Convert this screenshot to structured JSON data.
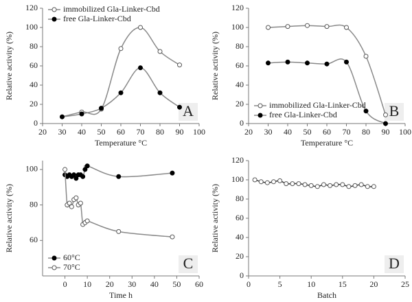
{
  "chart_data": [
    {
      "type": "line",
      "panel_label": "A",
      "x_label": "Temperature  °C",
      "y_label": "Relative activity (%)",
      "x": [
        30,
        40,
        50,
        60,
        70,
        80,
        90
      ],
      "xlim": [
        20,
        100
      ],
      "xticks": [
        20,
        30,
        40,
        50,
        60,
        70,
        80,
        90,
        100
      ],
      "ylim": [
        0,
        120
      ],
      "yticks": [
        0,
        20,
        40,
        60,
        80,
        100,
        120
      ],
      "legend": "upper left",
      "series": [
        {
          "name": "immobilized Gla-Linker-Cbd",
          "color": "#888888",
          "marker": "open",
          "values": [
            7,
            12,
            15,
            78,
            100,
            75,
            61
          ]
        },
        {
          "name": "free Gla-Linker-Cbd",
          "color": "#888888",
          "marker": "filled",
          "values": [
            7,
            10,
            16,
            32,
            58,
            32,
            17
          ]
        }
      ]
    },
    {
      "type": "line",
      "panel_label": "B",
      "x_label": "Temperature  °C",
      "y_label": "Relative activity (%)",
      "x": [
        30,
        40,
        50,
        60,
        70,
        80,
        90
      ],
      "xlim": [
        20,
        100
      ],
      "xticks": [
        20,
        30,
        40,
        50,
        60,
        70,
        80,
        90,
        100
      ],
      "ylim": [
        0,
        120
      ],
      "yticks": [
        0,
        20,
        40,
        60,
        80,
        100,
        120
      ],
      "legend": "lower left",
      "series": [
        {
          "name": "immobilized Gla-Linker-Cbd",
          "color": "#888888",
          "marker": "open",
          "values": [
            100,
            101,
            102,
            101,
            100,
            70,
            9
          ]
        },
        {
          "name": "free Gla-Linker-Cbd",
          "color": "#888888",
          "marker": "filled",
          "values": [
            63,
            64,
            63,
            62,
            64,
            13,
            0
          ]
        }
      ]
    },
    {
      "type": "line",
      "panel_label": "C",
      "x_label": "Time h",
      "y_label": "Relative activity (%)",
      "x": [
        0,
        1,
        2,
        3,
        4,
        5,
        6,
        7,
        8,
        9,
        10,
        24,
        48
      ],
      "xlim": [
        -10,
        60
      ],
      "xticks": [
        0,
        10,
        20,
        30,
        40,
        50,
        60
      ],
      "ylim": [
        40,
        105
      ],
      "yticks": [
        60,
        80,
        100
      ],
      "legend": "lower left",
      "series": [
        {
          "name": "60°C",
          "color": "#888888",
          "marker": "filled",
          "values": [
            97,
            96,
            97,
            96,
            97,
            95,
            97,
            97,
            96,
            100,
            102,
            96,
            98
          ]
        },
        {
          "name": "70°C",
          "color": "#888888",
          "marker": "open",
          "values": [
            100,
            80,
            81,
            79,
            83,
            84,
            80,
            81,
            69,
            70,
            71,
            65,
            62
          ]
        }
      ]
    },
    {
      "type": "line",
      "panel_label": "D",
      "x_label": "Batch",
      "y_label": "Relative activity (%)",
      "x": [
        1,
        2,
        3,
        4,
        5,
        6,
        7,
        8,
        9,
        10,
        11,
        12,
        13,
        14,
        15,
        16,
        17,
        18,
        19,
        20
      ],
      "xlim": [
        0,
        25
      ],
      "xticks": [
        0,
        5,
        10,
        15,
        20,
        25
      ],
      "ylim": [
        0,
        120
      ],
      "yticks": [
        0,
        20,
        40,
        60,
        80,
        100,
        120
      ],
      "series": [
        {
          "color": "#333333",
          "marker": "open",
          "values": [
            100,
            98,
            97,
            98,
            99,
            96,
            96,
            96,
            95,
            94,
            93,
            95,
            94,
            95,
            95,
            93,
            94,
            95,
            93,
            93
          ]
        }
      ]
    }
  ]
}
